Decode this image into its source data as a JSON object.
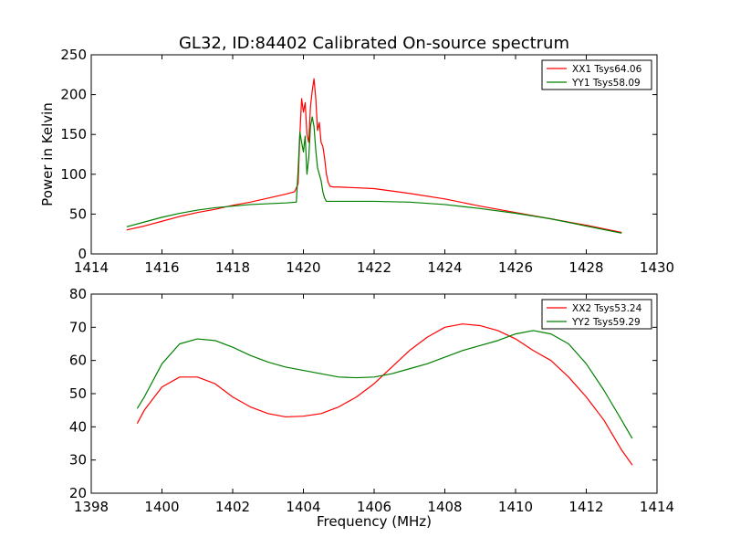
{
  "chart_data": [
    {
      "type": "line",
      "title": "GL32, ID:84402 Calibrated On-source spectrum",
      "xlabel": "",
      "ylabel": "Power in Kelvin",
      "xlim": [
        1414,
        1430
      ],
      "ylim": [
        0,
        250
      ],
      "xticks": [
        1414,
        1416,
        1418,
        1420,
        1422,
        1424,
        1426,
        1428,
        1430
      ],
      "yticks": [
        0,
        50,
        100,
        150,
        200,
        250
      ],
      "legend_position": "top-right",
      "grid": false,
      "series": [
        {
          "name": "XX1 Tsys64.06",
          "color": "#ff0000",
          "points": [
            [
              1415.0,
              30
            ],
            [
              1415.5,
              35
            ],
            [
              1416.0,
              41
            ],
            [
              1416.5,
              47
            ],
            [
              1417.0,
              52
            ],
            [
              1417.5,
              56
            ],
            [
              1418.0,
              61
            ],
            [
              1418.5,
              65
            ],
            [
              1419.0,
              70
            ],
            [
              1419.5,
              75
            ],
            [
              1419.75,
              78
            ],
            [
              1419.85,
              88
            ],
            [
              1419.9,
              150
            ],
            [
              1419.95,
              195
            ],
            [
              1420.0,
              178
            ],
            [
              1420.05,
              190
            ],
            [
              1420.1,
              150
            ],
            [
              1420.15,
              140
            ],
            [
              1420.2,
              185
            ],
            [
              1420.25,
              205
            ],
            [
              1420.3,
              220
            ],
            [
              1420.35,
              195
            ],
            [
              1420.4,
              155
            ],
            [
              1420.45,
              165
            ],
            [
              1420.5,
              140
            ],
            [
              1420.55,
              135
            ],
            [
              1420.6,
              120
            ],
            [
              1420.65,
              100
            ],
            [
              1420.7,
              90
            ],
            [
              1420.75,
              85
            ],
            [
              1420.85,
              84
            ],
            [
              1421.0,
              84
            ],
            [
              1422.0,
              82
            ],
            [
              1423.0,
              76
            ],
            [
              1424.0,
              69
            ],
            [
              1425.0,
              60
            ],
            [
              1426.0,
              52
            ],
            [
              1427.0,
              44
            ],
            [
              1428.0,
              36
            ],
            [
              1429.0,
              27
            ]
          ]
        },
        {
          "name": "YY1 Tsys58.09",
          "color": "#008000",
          "points": [
            [
              1415.0,
              34
            ],
            [
              1415.5,
              40
            ],
            [
              1416.0,
              46
            ],
            [
              1416.5,
              51
            ],
            [
              1417.0,
              55
            ],
            [
              1417.5,
              58
            ],
            [
              1418.0,
              60
            ],
            [
              1418.5,
              62
            ],
            [
              1419.0,
              63
            ],
            [
              1419.5,
              64
            ],
            [
              1419.8,
              65
            ],
            [
              1419.85,
              105
            ],
            [
              1419.9,
              153
            ],
            [
              1419.95,
              140
            ],
            [
              1420.0,
              128
            ],
            [
              1420.05,
              148
            ],
            [
              1420.1,
              100
            ],
            [
              1420.15,
              120
            ],
            [
              1420.2,
              160
            ],
            [
              1420.25,
              172
            ],
            [
              1420.3,
              160
            ],
            [
              1420.35,
              130
            ],
            [
              1420.4,
              108
            ],
            [
              1420.45,
              100
            ],
            [
              1420.5,
              92
            ],
            [
              1420.55,
              78
            ],
            [
              1420.6,
              70
            ],
            [
              1420.65,
              66
            ],
            [
              1421.0,
              66
            ],
            [
              1422.0,
              66
            ],
            [
              1423.0,
              65
            ],
            [
              1424.0,
              62
            ],
            [
              1425.0,
              57
            ],
            [
              1426.0,
              51
            ],
            [
              1427.0,
              44
            ],
            [
              1428.0,
              35
            ],
            [
              1429.0,
              26
            ]
          ]
        }
      ]
    },
    {
      "type": "line",
      "title": "",
      "xlabel": "Frequency (MHz)",
      "ylabel": "",
      "xlim": [
        1398,
        1414
      ],
      "ylim": [
        20,
        80
      ],
      "xticks": [
        1398,
        1400,
        1402,
        1404,
        1406,
        1408,
        1410,
        1412,
        1414
      ],
      "yticks": [
        20,
        30,
        40,
        50,
        60,
        70,
        80
      ],
      "legend_position": "top-right",
      "grid": false,
      "series": [
        {
          "name": "XX2 Tsys53.24",
          "color": "#ff0000",
          "points": [
            [
              1399.3,
              41
            ],
            [
              1399.5,
              45
            ],
            [
              1400.0,
              52
            ],
            [
              1400.5,
              55
            ],
            [
              1401.0,
              55
            ],
            [
              1401.5,
              53
            ],
            [
              1402.0,
              49
            ],
            [
              1402.5,
              46
            ],
            [
              1403.0,
              44
            ],
            [
              1403.5,
              43
            ],
            [
              1404.0,
              43.2
            ],
            [
              1404.5,
              44
            ],
            [
              1405.0,
              46
            ],
            [
              1405.5,
              49
            ],
            [
              1406.0,
              53
            ],
            [
              1406.5,
              58
            ],
            [
              1407.0,
              63
            ],
            [
              1407.5,
              67
            ],
            [
              1408.0,
              70
            ],
            [
              1408.5,
              71
            ],
            [
              1409.0,
              70.5
            ],
            [
              1409.5,
              69
            ],
            [
              1410.0,
              66.5
            ],
            [
              1410.5,
              63
            ],
            [
              1411.0,
              60
            ],
            [
              1411.5,
              55
            ],
            [
              1412.0,
              49
            ],
            [
              1412.5,
              42
            ],
            [
              1413.0,
              33
            ],
            [
              1413.3,
              28.5
            ]
          ]
        },
        {
          "name": "YY2 Tsys59.29",
          "color": "#008000",
          "points": [
            [
              1399.3,
              45.5
            ],
            [
              1399.5,
              49
            ],
            [
              1400.0,
              59
            ],
            [
              1400.5,
              65
            ],
            [
              1401.0,
              66.5
            ],
            [
              1401.5,
              66
            ],
            [
              1402.0,
              64
            ],
            [
              1402.5,
              61.5
            ],
            [
              1403.0,
              59.5
            ],
            [
              1403.5,
              58
            ],
            [
              1404.0,
              57
            ],
            [
              1404.5,
              56
            ],
            [
              1405.0,
              55
            ],
            [
              1405.5,
              54.8
            ],
            [
              1406.0,
              55
            ],
            [
              1406.5,
              56
            ],
            [
              1407.0,
              57.5
            ],
            [
              1407.5,
              59
            ],
            [
              1408.0,
              61
            ],
            [
              1408.5,
              63
            ],
            [
              1409.0,
              64.5
            ],
            [
              1409.5,
              66
            ],
            [
              1410.0,
              68
            ],
            [
              1410.5,
              69
            ],
            [
              1411.0,
              68
            ],
            [
              1411.5,
              65
            ],
            [
              1412.0,
              59
            ],
            [
              1412.5,
              51
            ],
            [
              1413.0,
              42
            ],
            [
              1413.3,
              36.5
            ]
          ]
        }
      ]
    }
  ]
}
